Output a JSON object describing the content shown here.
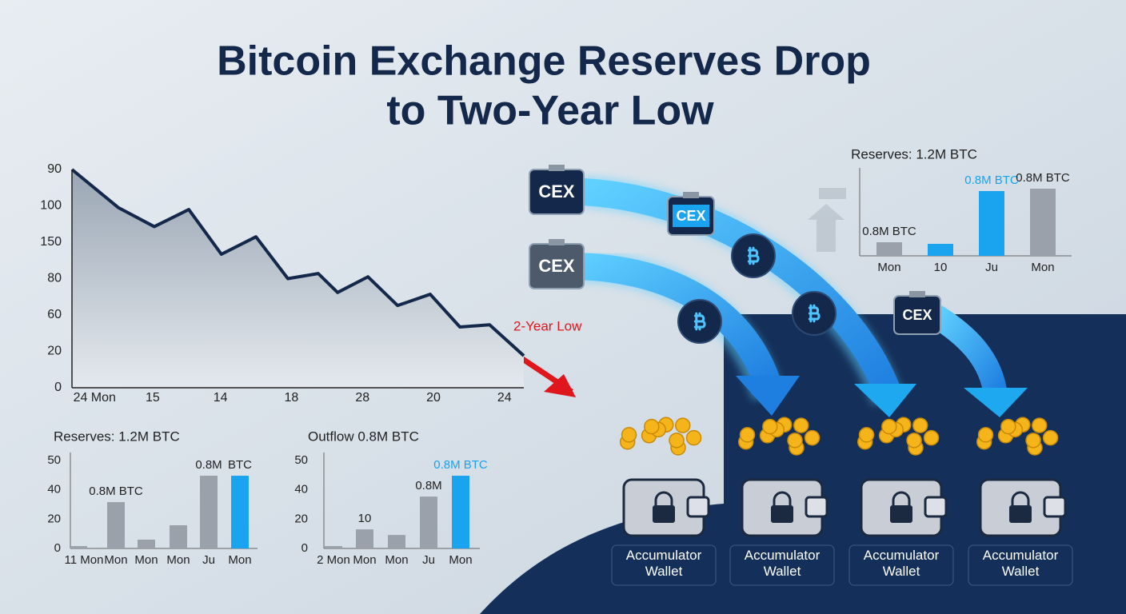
{
  "title_lines": [
    "Bitcoin Exchange Reserves Drop",
    "to Two-Year Low"
  ],
  "chart_data": [
    {
      "type": "area",
      "x": [
        0,
        1.44,
        2.55,
        3.62,
        4.63,
        5.7,
        6.69,
        7.63,
        8.23,
        9.17,
        10.09,
        11.1,
        12.02,
        12.94,
        14
      ],
      "values": [
        6.0,
        4.95,
        4.43,
        4.9,
        3.67,
        4.15,
        3.0,
        3.14,
        2.62,
        3.05,
        2.26,
        2.57,
        1.67,
        1.73,
        0.88
      ],
      "xlim": [
        0,
        14
      ],
      "xticks": [
        {
          "value": 0.7,
          "label": "24 Mon"
        },
        {
          "value": 2.5,
          "label": "15"
        },
        {
          "value": 4.6,
          "label": "14"
        },
        {
          "value": 6.8,
          "label": "18"
        },
        {
          "value": 9,
          "label": "28"
        },
        {
          "value": 11.2,
          "label": "20"
        },
        {
          "value": 13.4,
          "label": "24"
        }
      ],
      "ylim": [
        0,
        6
      ],
      "yticks": [
        {
          "value": 0,
          "label": "0"
        },
        {
          "value": 1,
          "label": "20"
        },
        {
          "value": 2,
          "label": "60"
        },
        {
          "value": 3,
          "label": "80"
        },
        {
          "value": 4,
          "label": "150"
        },
        {
          "value": 5,
          "label": "100"
        },
        {
          "value": 6,
          "label": "90"
        }
      ],
      "color": "#13284a",
      "annotation": "2-Year Low"
    },
    {
      "type": "bar",
      "title": "Reserves: 1.2M BTC",
      "categories": [
        "Mon",
        "10",
        "Ju",
        "Mon"
      ],
      "values": [
        17,
        15,
        81,
        84
      ],
      "colors": [
        "#9aa1aa",
        "#1aa3ee",
        "#1aa3ee",
        "#9aa1aa"
      ],
      "bar_labels": [
        "0.8M BTC",
        null,
        "0.8M BTC",
        "0.8M BTC"
      ],
      "ylim": [
        0,
        100
      ]
    },
    {
      "type": "bar",
      "title": "Reserves: 1.2M BTC",
      "categories": [
        "11 Mon",
        "Mon",
        "Mon",
        "Mon",
        "Ju",
        "Mon"
      ],
      "values": [
        0.08,
        1.58,
        0.3,
        0.79,
        2.48,
        2.48
      ],
      "colors": [
        "#9aa1aa",
        "#9aa1aa",
        "#9aa1aa",
        "#9aa1aa",
        "#9aa1aa",
        "#1aa3ee"
      ],
      "bar_labels": [
        null,
        "0.8M BTC",
        null,
        null,
        "0.8M",
        "BTC"
      ],
      "ylim": [
        0,
        3
      ],
      "yticks": [
        {
          "value": 0,
          "label": "0"
        },
        {
          "value": 1,
          "label": "20"
        },
        {
          "value": 2,
          "label": "40"
        },
        {
          "value": 3,
          "label": "50"
        }
      ]
    },
    {
      "type": "bar",
      "title": "Outflow 0.8M BTC",
      "categories": [
        "2 Mon",
        "Mon",
        "Mon",
        "Ju",
        "Mon"
      ],
      "values": [
        0.08,
        0.65,
        0.46,
        1.77,
        2.48
      ],
      "colors": [
        "#9aa1aa",
        "#9aa1aa",
        "#9aa1aa",
        "#9aa1aa",
        "#1aa3ee"
      ],
      "bar_labels": [
        null,
        "10",
        null,
        "0.8M",
        "0.8M BTC"
      ],
      "ylim": [
        0,
        3
      ],
      "yticks": [
        {
          "value": 0,
          "label": "0"
        },
        {
          "value": 1,
          "label": "20"
        },
        {
          "value": 2,
          "label": "40"
        },
        {
          "value": 3,
          "label": "50"
        }
      ]
    }
  ],
  "diagram": {
    "exchanges": [
      "CEX",
      "CEX",
      "CEX",
      "CEX"
    ],
    "wallets": [
      "Accumulator Wallet",
      "Accumulator Wallet",
      "Accumulator Wallet",
      "Accumulator Wallet"
    ]
  }
}
